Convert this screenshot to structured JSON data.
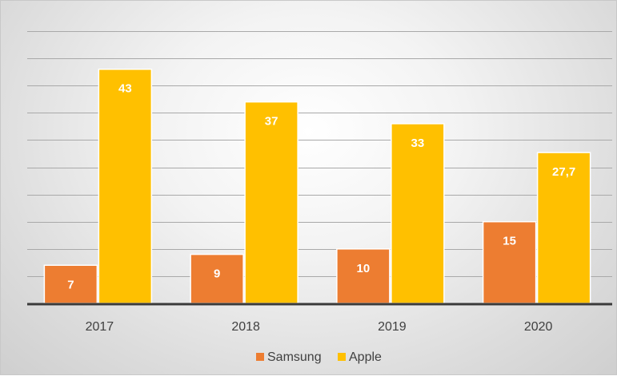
{
  "chart_data": {
    "type": "bar",
    "categories": [
      "2017",
      "2018",
      "2019",
      "2020"
    ],
    "series": [
      {
        "name": "Samsung",
        "values": [
          7,
          9,
          10,
          15
        ],
        "labels": [
          "7",
          "9",
          "10",
          "15"
        ],
        "color": "#ED7D31"
      },
      {
        "name": "Apple",
        "values": [
          43,
          37,
          33,
          27.7
        ],
        "labels": [
          "43",
          "37",
          "33",
          "27,7"
        ],
        "color": "#FFC000"
      }
    ],
    "ylim": [
      0,
      50
    ],
    "gridlines": true,
    "grid_step": 5,
    "legend_position": "bottom",
    "title": "",
    "xlabel": "",
    "ylabel": ""
  }
}
